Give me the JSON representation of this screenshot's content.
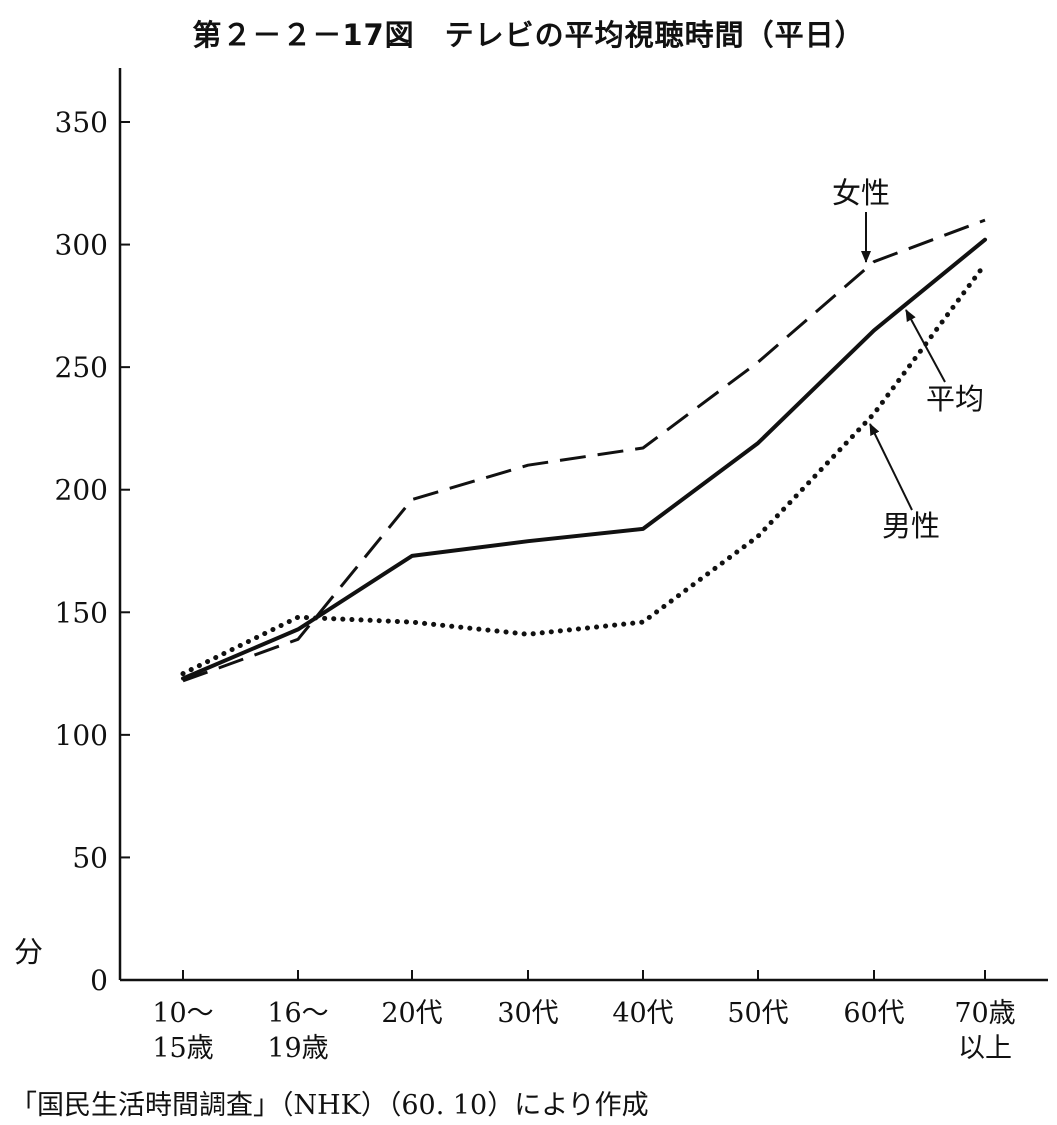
{
  "chart_data": {
    "type": "line",
    "title": "第２－２－17図　テレビの平均視聴時間（平日）",
    "ylabel": "分",
    "ylim": [
      0,
      370
    ],
    "yticks": [
      0,
      50,
      100,
      150,
      200,
      250,
      300,
      350
    ],
    "categories": [
      [
        "10～",
        "15歳"
      ],
      [
        "16～",
        "19歳"
      ],
      [
        "20代"
      ],
      [
        "30代"
      ],
      [
        "40代"
      ],
      [
        "50代"
      ],
      [
        "60代"
      ],
      [
        "70歳",
        "以上"
      ]
    ],
    "series": [
      {
        "name": "女性",
        "style": "dashed",
        "values": [
          122,
          139,
          196,
          210,
          217,
          252,
          293,
          310
        ]
      },
      {
        "name": "平均",
        "style": "solid",
        "values": [
          123,
          143,
          173,
          179,
          184,
          219,
          265,
          302
        ]
      },
      {
        "name": "男性",
        "style": "dotted",
        "values": [
          125,
          148,
          146,
          141,
          146,
          181,
          231,
          292
        ]
      }
    ],
    "grid": false,
    "legend": "annotations with arrows",
    "source": "「国民生活時間調査」（NHK）（60. 10）により作成",
    "colors": {
      "line": "#111111",
      "background": "#ffffff"
    }
  }
}
